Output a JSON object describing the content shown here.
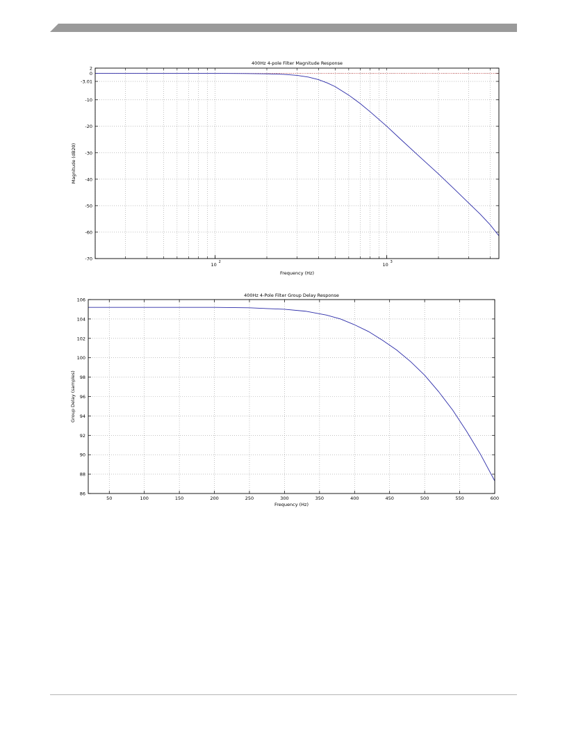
{
  "page": {
    "header_bar_color": "#9a9a9a",
    "footer_rule_color": "#b5b5b5"
  },
  "chart_data": [
    {
      "type": "line",
      "title": "400Hz 4-pole Filter Magnitude Response",
      "xlabel": "Frequency (Hz)",
      "ylabel": "Magnitude (dB20)",
      "xscale": "log",
      "xlim": [
        20,
        4500
      ],
      "ylim": [
        -70,
        2
      ],
      "yticks": [
        2,
        0,
        -3.01,
        -10,
        -20,
        -30,
        -40,
        -50,
        -60,
        -70
      ],
      "ytick_labels": [
        "2",
        "0",
        "-3.01",
        "-10",
        "-20",
        "-30",
        "-40",
        "-50",
        "-60",
        "-70"
      ],
      "xtick_major": [
        {
          "value": 100,
          "base": "10",
          "exp": "2"
        },
        {
          "value": 1000,
          "base": "10",
          "exp": "3"
        }
      ],
      "grid": true,
      "reference_line": {
        "y": 0,
        "color": "#cc3333",
        "style": "dotted"
      },
      "series": [
        {
          "color": "#2a2aa8",
          "x": [
            20,
            50,
            100,
            150,
            200,
            250,
            300,
            350,
            400,
            450,
            500,
            600,
            700,
            800,
            1000,
            1200,
            1500,
            2000,
            2500,
            3000,
            3500,
            4000,
            4500
          ],
          "values": [
            0,
            0,
            0,
            -0.05,
            -0.15,
            -0.35,
            -0.75,
            -1.4,
            -2.35,
            -3.6,
            -5.0,
            -8.2,
            -11.4,
            -14.5,
            -20.0,
            -24.8,
            -30.6,
            -38.0,
            -44.0,
            -49.0,
            -53.2,
            -57.2,
            -61.4
          ]
        }
      ]
    },
    {
      "type": "line",
      "title": "400Hz 4-Pole Filter Group Delay Response",
      "xlabel": "Frequency (Hz)",
      "ylabel": "Group Delay (samples)",
      "xlim": [
        20,
        600
      ],
      "ylim": [
        86,
        106
      ],
      "xticks": [
        50,
        100,
        150,
        200,
        250,
        300,
        350,
        400,
        450,
        500,
        550,
        600
      ],
      "yticks": [
        86,
        88,
        90,
        92,
        94,
        96,
        98,
        100,
        102,
        104,
        106
      ],
      "grid": true,
      "series": [
        {
          "color": "#2a2aa8",
          "x": [
            20,
            50,
            100,
            150,
            200,
            250,
            300,
            330,
            360,
            380,
            400,
            420,
            440,
            460,
            480,
            500,
            520,
            540,
            560,
            580,
            600
          ],
          "values": [
            105.2,
            105.2,
            105.2,
            105.2,
            105.2,
            105.15,
            105.0,
            104.8,
            104.4,
            104.0,
            103.4,
            102.7,
            101.8,
            100.8,
            99.6,
            98.2,
            96.5,
            94.6,
            92.4,
            90.0,
            87.3
          ]
        }
      ]
    }
  ]
}
